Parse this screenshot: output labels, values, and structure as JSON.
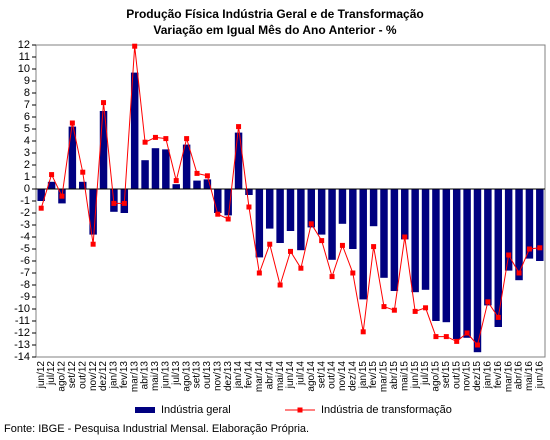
{
  "chart_data": {
    "type": "bar_line",
    "title": "Produção Física Indústria Geral e de Transformação",
    "subtitle": "Variação em Igual Mês do Ano Anterior - %",
    "source": "Fonte: IBGE - Pesquisa Industrial Mensal. Elaboração Própria.",
    "categories": [
      "jun/12",
      "jul/12",
      "ago/12",
      "set/12",
      "out/12",
      "nov/12",
      "dez/12",
      "jan/13",
      "fev/13",
      "mar/13",
      "abr/13",
      "mai/13",
      "jun/13",
      "jul/13",
      "ago/13",
      "set/13",
      "out/13",
      "nov/13",
      "dez/13",
      "jan/14",
      "fev/14",
      "mar/14",
      "abr/14",
      "mai/14",
      "jun/14",
      "jul/14",
      "ago/14",
      "set/14",
      "out/14",
      "nov/14",
      "dez/14",
      "jan/15",
      "fev/15",
      "mar/15",
      "abr/15",
      "mai/15",
      "jun/15",
      "jul/15",
      "ago/15",
      "set/15",
      "out/15",
      "nov/15",
      "dez/15",
      "jan/16",
      "fev/16",
      "mar/16",
      "abr/16",
      "mai/16",
      "jun/16"
    ],
    "series": [
      {
        "name": "Indústria geral",
        "kind": "bar",
        "color": "#000080",
        "values": [
          -1.0,
          0.6,
          -1.2,
          5.2,
          0.6,
          -3.8,
          6.5,
          -1.9,
          -2.0,
          9.7,
          2.4,
          3.4,
          3.3,
          0.4,
          3.7,
          0.7,
          0.8,
          -2.0,
          -2.2,
          4.7,
          -0.5,
          -5.7,
          -3.3,
          -4.5,
          -3.5,
          -5.1,
          -3.2,
          -3.8,
          -5.9,
          -2.9,
          -5.0,
          -9.2,
          -3.1,
          -7.4,
          -8.5,
          -4.2,
          -8.6,
          -8.4,
          -11.0,
          -11.1,
          -12.5,
          -12.4,
          -13.6,
          -9.7,
          -11.5,
          -6.8,
          -7.6,
          -5.8,
          -6.0
        ]
      },
      {
        "name": "Indústria de transformação",
        "kind": "line",
        "color": "#ff0000",
        "values": [
          -1.6,
          1.2,
          -0.6,
          5.5,
          1.4,
          -4.6,
          7.2,
          -1.2,
          -1.2,
          11.9,
          3.9,
          4.3,
          4.2,
          0.7,
          4.2,
          1.3,
          1.1,
          -2.1,
          -2.5,
          5.2,
          -1.5,
          -7.0,
          -4.6,
          -8.0,
          -5.2,
          -6.6,
          -2.9,
          -4.3,
          -7.3,
          -4.7,
          -7.0,
          -11.9,
          -4.8,
          -9.8,
          -10.1,
          -4.0,
          -10.2,
          -9.9,
          -12.3,
          -12.3,
          -12.7,
          -12.0,
          -13.0,
          -9.4,
          -10.7,
          -5.5,
          -7.0,
          -5.0,
          -4.9
        ]
      }
    ],
    "ylim": [
      -14,
      12
    ],
    "yticks": [
      -14,
      -13,
      -12,
      -11,
      -10,
      -9,
      -8,
      -7,
      -6,
      -5,
      -4,
      -3,
      -2,
      -1,
      0,
      1,
      2,
      3,
      4,
      5,
      6,
      7,
      8,
      9,
      10,
      11,
      12
    ],
    "legend": "bottom"
  }
}
